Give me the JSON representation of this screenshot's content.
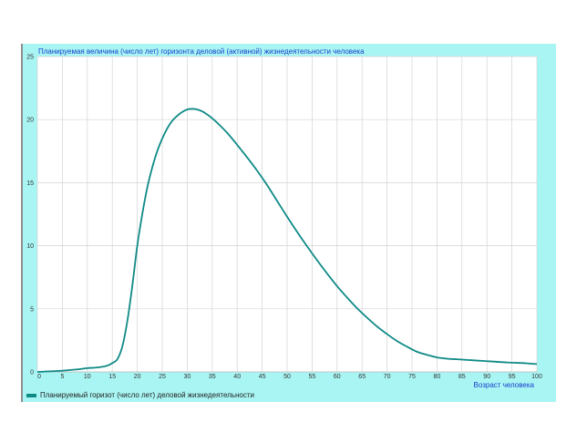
{
  "chart_data": {
    "type": "line",
    "title": "Планируемая величина (число лет) горизонта деловой (активной) жизнедеятельности человека",
    "xlabel": "Возраст человека",
    "ylabel": "",
    "xlim": [
      0,
      100
    ],
    "ylim": [
      0,
      25
    ],
    "x_ticks": [
      "0",
      "5",
      "10",
      "15",
      "20",
      "25",
      "30",
      "35",
      "40",
      "45",
      "50",
      "55",
      "60",
      "65",
      "70",
      "75",
      "80",
      "85",
      "90",
      "95",
      "100"
    ],
    "y_ticks": [
      "0",
      "5",
      "10",
      "15",
      "20",
      "25"
    ],
    "grid": true,
    "legend_position": "bottom-left",
    "series": [
      {
        "name": "Планируемый горизот (число лет) деловой жизнедеятельности",
        "color": "#0f8a86",
        "x": [
          0,
          5,
          8,
          10,
          12,
          14,
          15,
          16,
          17,
          18,
          19,
          20,
          21,
          22,
          23,
          24,
          25,
          26,
          27,
          28,
          29,
          30,
          31,
          32,
          33,
          34,
          35,
          36,
          38,
          40,
          42,
          44,
          46,
          48,
          50,
          52,
          54,
          56,
          58,
          60,
          62,
          64,
          66,
          68,
          70,
          72,
          74,
          76,
          78,
          80,
          82,
          84,
          86,
          88,
          90,
          92,
          94,
          96,
          98,
          100
        ],
        "y": [
          0,
          0.1,
          0.2,
          0.3,
          0.35,
          0.5,
          0.7,
          1.0,
          2.0,
          4.0,
          6.8,
          10.0,
          12.5,
          14.6,
          16.2,
          17.5,
          18.5,
          19.3,
          19.9,
          20.3,
          20.6,
          20.8,
          20.85,
          20.8,
          20.65,
          20.4,
          20.1,
          19.75,
          18.95,
          18.0,
          17.0,
          15.95,
          14.8,
          13.55,
          12.3,
          11.1,
          9.95,
          8.85,
          7.8,
          6.8,
          5.9,
          5.05,
          4.3,
          3.6,
          3.0,
          2.45,
          2.0,
          1.6,
          1.35,
          1.15,
          1.05,
          1.0,
          0.95,
          0.9,
          0.85,
          0.8,
          0.75,
          0.72,
          0.68,
          0.62
        ]
      }
    ]
  },
  "colors": {
    "frame": "#a8f5f3",
    "plot_bg": "#ffffff",
    "grid": "#d4d4d4",
    "title": "#1a3dcc",
    "axis_label": "#1a3dcc",
    "line": "#0f8a86",
    "left_border": "#8e8e8e"
  }
}
